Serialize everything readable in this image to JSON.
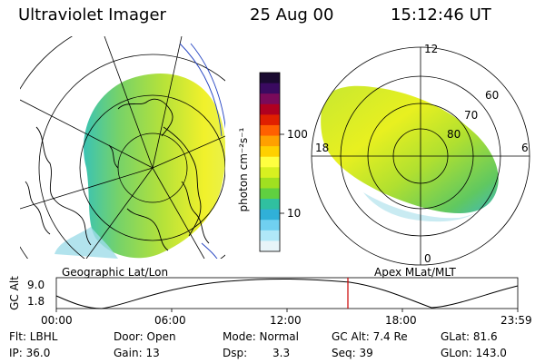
{
  "header": {
    "instrument": "Ultraviolet Imager",
    "date": "25 Aug 00",
    "time": "15:12:46 UT"
  },
  "left_panel": {
    "caption": "Geographic Lat/Lon"
  },
  "right_panel": {
    "caption": "Apex MLat/MLT",
    "mlt_labels": {
      "top": "12",
      "left": "18",
      "right": "6",
      "bottom": "0"
    },
    "mlat_labels": [
      "60",
      "70",
      "80"
    ]
  },
  "colorbar": {
    "unit_label": "photon cm⁻²s⁻¹",
    "tick_100": "100",
    "tick_10": "10",
    "colors": [
      "#1a0a30",
      "#3a0a60",
      "#7a0a5a",
      "#b00020",
      "#e02000",
      "#ff6000",
      "#ffa000",
      "#ffd000",
      "#ffff40",
      "#d8f020",
      "#a0e020",
      "#60d040",
      "#30c0a0",
      "#30b0d8",
      "#70d0f0",
      "#b0e8f8",
      "#e8f4f8"
    ]
  },
  "timeline": {
    "ylabel": "GC Alt",
    "y_top": "9.0",
    "y_bottom": "1.8",
    "ticks": [
      "00:00",
      "06:00",
      "12:00",
      "18:00",
      "23:59"
    ],
    "marker_color": "#cc0000"
  },
  "info": {
    "filter": "Flt: LBHL",
    "ip": "IP: 36.0",
    "door": "Door: Open",
    "gain": "Gain: 13",
    "mode": "Mode: Normal",
    "dsp_label": "Dsp:",
    "dsp_value": "3.3",
    "gc_alt": "GC Alt: 7.4 Re",
    "seq": "Seq: 39",
    "glat": "GLat:  81.6",
    "glon": "GLon: 143.0"
  }
}
